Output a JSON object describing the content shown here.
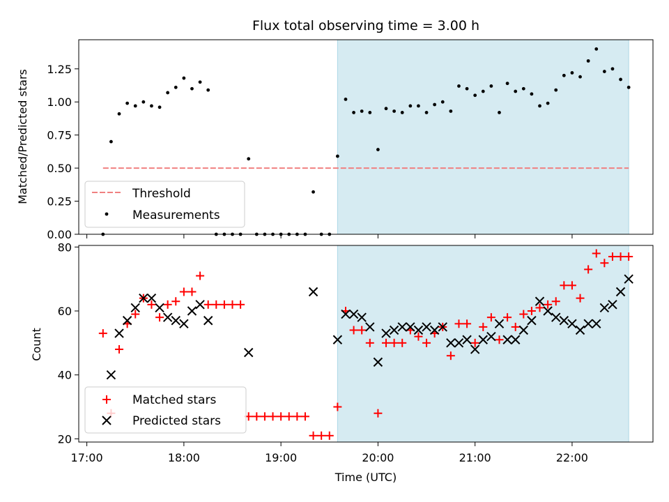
{
  "figure": {
    "title": "Flux total observing time = 3.00 h",
    "xlabel": "Time (UTC)",
    "x_ticks": [
      "17:00",
      "18:00",
      "19:00",
      "20:00",
      "21:00",
      "22:00"
    ],
    "shade_color": "#add8e6",
    "shaded_span": [
      "19:35",
      "22:35"
    ]
  },
  "chart_data": [
    {
      "type": "scatter",
      "name": "ratio",
      "ylabel": "Matched/Predicted stars",
      "xlim": [
        "16:55",
        "22:50"
      ],
      "ylim": [
        0,
        1.47
      ],
      "y_ticks": [
        "0.00",
        "0.25",
        "0.50",
        "0.75",
        "1.00",
        "1.25"
      ],
      "legend_position": "lower-left",
      "threshold": {
        "label": "Threshold",
        "y": 0.5,
        "x_range": [
          "17:10",
          "22:35"
        ],
        "color": "#f08080"
      },
      "series": [
        {
          "name": "Measurements",
          "color": "#000000",
          "x": [
            "17:10",
            "17:15",
            "17:20",
            "17:25",
            "17:30",
            "17:35",
            "17:40",
            "17:45",
            "17:50",
            "17:55",
            "18:00",
            "18:05",
            "18:10",
            "18:15",
            "18:20",
            "18:25",
            "18:30",
            "18:35",
            "18:40",
            "18:45",
            "18:50",
            "18:55",
            "19:00",
            "19:05",
            "19:10",
            "19:15",
            "19:20",
            "19:25",
            "19:30",
            "19:35",
            "19:40",
            "19:45",
            "19:50",
            "19:55",
            "20:00",
            "20:05",
            "20:10",
            "20:15",
            "20:20",
            "20:25",
            "20:30",
            "20:35",
            "20:40",
            "20:45",
            "20:50",
            "20:55",
            "21:00",
            "21:05",
            "21:10",
            "21:15",
            "21:20",
            "21:25",
            "21:30",
            "21:35",
            "21:40",
            "21:45",
            "21:50",
            "21:55",
            "22:00",
            "22:05",
            "22:10",
            "22:15",
            "22:20",
            "22:25",
            "22:30",
            "22:35"
          ],
          "y": [
            0.0,
            0.7,
            0.91,
            0.99,
            0.97,
            1.0,
            0.97,
            0.96,
            1.07,
            1.11,
            1.18,
            1.1,
            1.15,
            1.09,
            0.0,
            0.0,
            0.0,
            0.0,
            0.57,
            0.0,
            0.0,
            0.0,
            0.0,
            0.0,
            0.0,
            0.0,
            0.32,
            0.0,
            0.0,
            0.59,
            1.02,
            0.92,
            0.93,
            0.92,
            0.64,
            0.95,
            0.93,
            0.92,
            0.97,
            0.97,
            0.92,
            0.98,
            1.0,
            0.93,
            1.12,
            1.1,
            1.05,
            1.08,
            1.12,
            0.92,
            1.14,
            1.08,
            1.1,
            1.06,
            0.97,
            0.99,
            1.09,
            1.2,
            1.22,
            1.19,
            1.31,
            1.4,
            1.23,
            1.25,
            1.17,
            1.11
          ]
        }
      ]
    },
    {
      "type": "scatter",
      "name": "counts",
      "ylabel": "Count",
      "xlim": [
        "16:55",
        "22:50"
      ],
      "ylim": [
        19,
        80.5
      ],
      "y_ticks": [
        "20",
        "40",
        "60",
        "80"
      ],
      "legend_position": "lower-left",
      "series": [
        {
          "name": "Matched stars",
          "color": "#ff0000",
          "marker": "plus",
          "x": [
            "17:10",
            "17:15",
            "17:20",
            "17:25",
            "17:30",
            "17:35",
            "17:40",
            "17:45",
            "17:50",
            "17:55",
            "18:00",
            "18:05",
            "18:10",
            "18:15",
            "18:20",
            "18:25",
            "18:30",
            "18:35",
            "18:40",
            "18:45",
            "18:50",
            "18:55",
            "19:00",
            "19:05",
            "19:10",
            "19:15",
            "19:20",
            "19:25",
            "19:30",
            "19:35",
            "19:40",
            "19:45",
            "19:50",
            "19:55",
            "20:00",
            "20:05",
            "20:10",
            "20:15",
            "20:20",
            "20:25",
            "20:30",
            "20:35",
            "20:40",
            "20:45",
            "20:50",
            "20:55",
            "21:00",
            "21:05",
            "21:10",
            "21:15",
            "21:20",
            "21:25",
            "21:30",
            "21:35",
            "21:40",
            "21:45",
            "21:50",
            "21:55",
            "22:00",
            "22:05",
            "22:10",
            "22:15",
            "22:20",
            "22:25",
            "22:30",
            "22:35"
          ],
          "y": [
            53,
            28,
            48,
            56,
            59,
            64,
            62,
            58,
            62,
            63,
            66,
            66,
            71,
            62,
            62,
            62,
            62,
            62,
            27,
            27,
            27,
            27,
            27,
            27,
            27,
            27,
            21,
            21,
            21,
            30,
            60,
            54,
            54,
            50,
            28,
            50,
            50,
            50,
            54,
            52,
            50,
            53,
            55,
            46,
            56,
            56,
            50,
            55,
            58,
            51,
            58,
            55,
            59,
            60,
            61,
            62,
            63,
            68,
            68,
            64,
            73,
            78,
            75,
            77,
            77,
            77
          ]
        },
        {
          "name": "Predicted stars",
          "color": "#000000",
          "marker": "x",
          "x": [
            "17:15",
            "17:20",
            "17:25",
            "17:30",
            "17:35",
            "17:40",
            "17:45",
            "17:50",
            "17:55",
            "18:00",
            "18:05",
            "18:10",
            "18:15",
            "18:40",
            "19:20",
            "19:35",
            "19:40",
            "19:45",
            "19:50",
            "19:55",
            "20:00",
            "20:05",
            "20:10",
            "20:15",
            "20:20",
            "20:25",
            "20:30",
            "20:35",
            "20:40",
            "20:45",
            "20:50",
            "20:55",
            "21:00",
            "21:05",
            "21:10",
            "21:15",
            "21:20",
            "21:25",
            "21:30",
            "21:35",
            "21:40",
            "21:45",
            "21:50",
            "21:55",
            "22:00",
            "22:05",
            "22:10",
            "22:15",
            "22:20",
            "22:25",
            "22:30",
            "22:35"
          ],
          "y": [
            40,
            53,
            57,
            61,
            64,
            64,
            61,
            58,
            57,
            56,
            60,
            62,
            57,
            47,
            66,
            51,
            59,
            59,
            58,
            55,
            44,
            53,
            54,
            55,
            55,
            54,
            55,
            54,
            55,
            50,
            50,
            51,
            48,
            51,
            52,
            56,
            51,
            51,
            54,
            57,
            63,
            60,
            58,
            57,
            56,
            54,
            56,
            56,
            61,
            62,
            66,
            70
          ]
        }
      ]
    }
  ]
}
